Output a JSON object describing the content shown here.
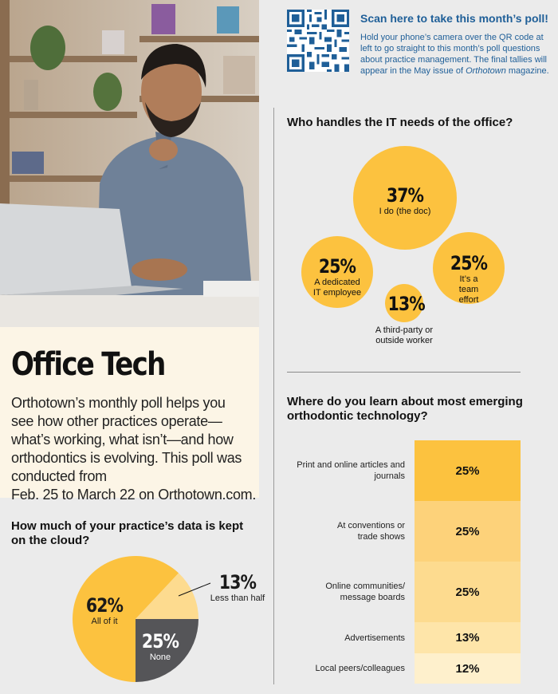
{
  "intro": {
    "title": "Office Tech",
    "body_parts": [
      "Orthotown’s monthly poll helps you see how other practices operate—what’s working, what isn’t—and how orthodontics is evolving. This poll was conducted from",
      "Feb. 25 to March 22 on Orthotown.com."
    ]
  },
  "poll_cta": {
    "title": "Scan here to take this month’s poll!",
    "body_before": "Hold your phone’s camera over the QR code at left to go straight to this month’s poll questions about practice management. The final tallies will appear in the May issue of ",
    "body_magazine": "Orthotown",
    "body_after": " magazine."
  },
  "colors": {
    "gold": "#fcc23f",
    "gold_light": "#fdd27a",
    "gold_pale": "#fee5a9",
    "gold_faint": "#fef0cc",
    "pale_yellow": "#fddb8f",
    "dark_gray": "#555558",
    "link_blue": "#1f5f98",
    "cream": "#fcf5e6",
    "page_bg": "#ebebeb"
  },
  "chart_data": [
    {
      "type": "bubble",
      "title": "Who handles the IT needs of the office?",
      "categories": [
        "I do (the doc)",
        "A dedicated IT employee",
        "It’s a team effort",
        "A third-party or outside worker"
      ],
      "values": [
        37,
        25,
        25,
        13
      ],
      "labels": [
        "37%",
        "25%",
        "25%",
        "13%"
      ]
    },
    {
      "type": "bar",
      "title": "Where do you learn about most emerging orthodontic technology?",
      "categories": [
        "Print and online articles and journals",
        "At conventions or trade shows",
        "Online communities/ message boards",
        "Advertisements",
        "Local peers/colleagues"
      ],
      "values": [
        25,
        25,
        25,
        13,
        12
      ],
      "labels": [
        "25%",
        "25%",
        "25%",
        "13%",
        "12%"
      ]
    },
    {
      "type": "pie",
      "title": "How much of your practice’s data is kept on the cloud?",
      "categories": [
        "All of it",
        "Less than half",
        "None"
      ],
      "values": [
        62,
        13,
        25
      ],
      "labels": [
        "62%",
        "13%",
        "25%"
      ]
    }
  ]
}
